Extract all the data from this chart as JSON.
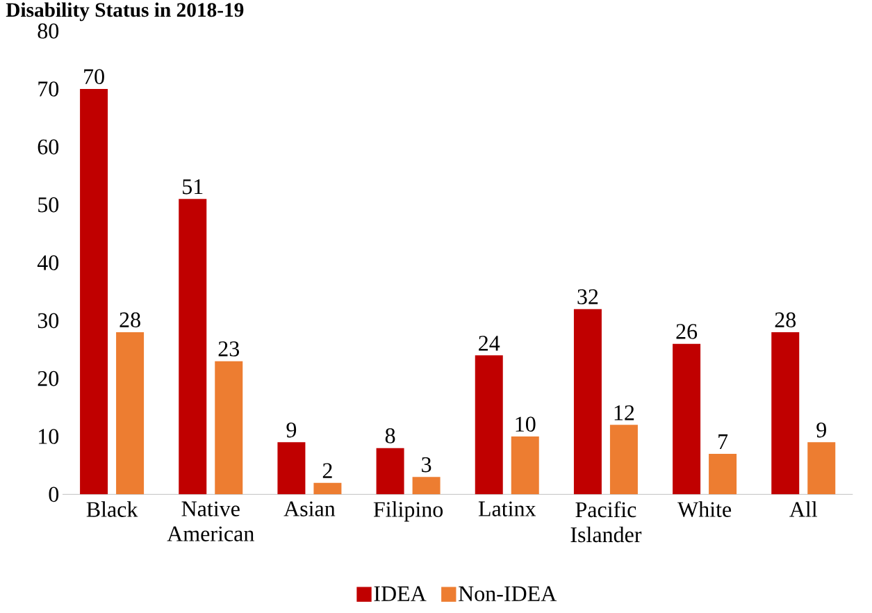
{
  "chart_data": {
    "type": "bar",
    "title": "Disability Status in 2018-19",
    "categories": [
      "Black",
      "Native American",
      "Asian",
      "Filipino",
      "Latinx",
      "Pacific Islander",
      "White",
      "All"
    ],
    "series": [
      {
        "name": "IDEA",
        "color": "#c00000",
        "values": [
          70,
          51,
          9,
          8,
          24,
          32,
          26,
          28
        ]
      },
      {
        "name": "Non-IDEA",
        "color": "#ed7d31",
        "values": [
          28,
          23,
          2,
          3,
          10,
          12,
          7,
          9
        ]
      }
    ],
    "ylim": [
      0,
      80
    ],
    "yticks": [
      0,
      10,
      20,
      30,
      40,
      50,
      60,
      70,
      80
    ],
    "data_labels": true,
    "grid": false,
    "legend": "bottom"
  }
}
